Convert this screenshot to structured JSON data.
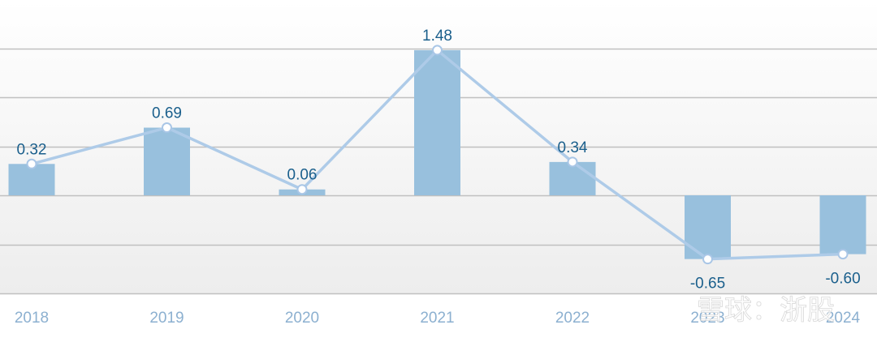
{
  "chart_data": {
    "type": "bar",
    "categories": [
      "2018",
      "2019",
      "2020",
      "2021",
      "2022",
      "2023",
      "2024"
    ],
    "series": [
      {
        "type": "bar",
        "values": [
          0.32,
          0.69,
          0.06,
          1.48,
          0.34,
          -0.65,
          -0.6
        ]
      },
      {
        "type": "line",
        "values": [
          0.32,
          0.69,
          0.06,
          1.48,
          0.34,
          -0.65,
          -0.6
        ]
      }
    ],
    "data_labels": [
      "0.32",
      "0.69",
      "0.06",
      "1.48",
      "0.34",
      "-0.65",
      "-0.60"
    ],
    "ylim": [
      -1.0,
      1.5
    ],
    "grid": true,
    "colors": {
      "bar": "#98c0dd",
      "line": "#aecbe8",
      "marker_fill": "#ffffff",
      "marker_stroke": "#a9c6e6",
      "label": "#1a5f8c",
      "tick": "#8cb0d0",
      "grid": "#c0c0c0"
    }
  },
  "watermark": {
    "text": "雪球：浙股"
  }
}
